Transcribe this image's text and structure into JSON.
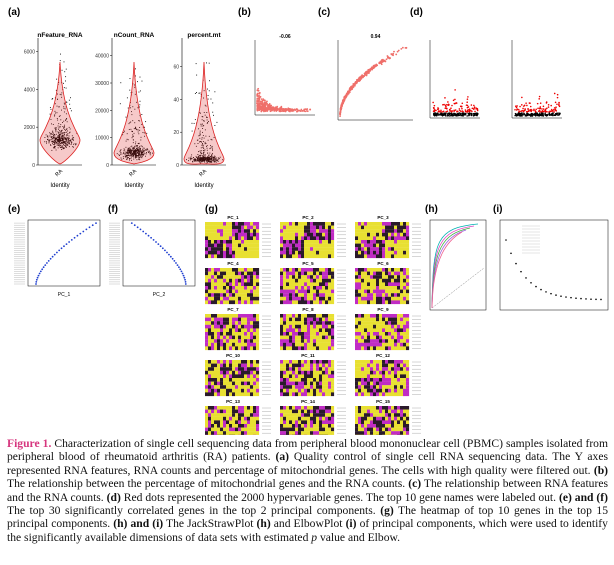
{
  "panel_labels": [
    "(a)",
    "(b)",
    "(c)",
    "(d)",
    "(e)",
    "(f)",
    "(g)",
    "(h)",
    "(i)"
  ],
  "violins": [
    {
      "title": "nFeature_RNA",
      "category": "RA",
      "xlabel": "Identity",
      "ylim": [
        0,
        6500
      ],
      "yticks": [
        0,
        2000,
        4000,
        6000
      ]
    },
    {
      "title": "nCount_RNA",
      "category": "RA",
      "xlabel": "Identity",
      "ylim": [
        0,
        45000
      ],
      "yticks": [
        0,
        10000,
        20000,
        30000,
        40000
      ]
    },
    {
      "title": "percent.mt",
      "category": "RA",
      "xlabel": "Identity",
      "ylim": [
        0,
        75
      ],
      "yticks": [
        0,
        20,
        40,
        60
      ]
    }
  ],
  "correlations": [
    "-0.06",
    "0.94"
  ],
  "pc_axes": [
    "PC_1",
    "PC_2"
  ],
  "heatmap_titles": [
    "PC_1",
    "PC_2",
    "PC_3",
    "PC_4",
    "PC_5",
    "PC_6",
    "PC_7",
    "PC_8",
    "PC_9",
    "PC_10",
    "PC_11",
    "PC_12",
    "PC_13",
    "PC_14",
    "PC_15"
  ],
  "caption": [
    {
      "text": "Figure 1.",
      "style": "fig"
    },
    {
      "text": " Characterization of single cell sequencing data from peripheral blood mononuclear cell (PBMC) samples isolated from peripheral blood of rheumatoid arthritis (RA) patients. "
    },
    {
      "text": "(a)",
      "style": "b"
    },
    {
      "text": " Quality control of single cell RNA sequencing data. The Y axes represented RNA features, RNA counts and percentage of mitochondrial genes. The cells with high quality were filtered out. "
    },
    {
      "text": "(b)",
      "style": "b"
    },
    {
      "text": " The relationship between the percentage of mitochondrial genes and the RNA counts. "
    },
    {
      "text": "(c)",
      "style": "b"
    },
    {
      "text": " The relationship between RNA features and the RNA counts. "
    },
    {
      "text": "(d)",
      "style": "b"
    },
    {
      "text": " Red dots represented the 2000 hypervariable genes. The top 10 gene names were labeled out. "
    },
    {
      "text": "(e) and (f)",
      "style": "b"
    },
    {
      "text": " The top 30 significantly correlated genes in the top 2 principal components. "
    },
    {
      "text": "(g)",
      "style": "b"
    },
    {
      "text": " The heatmap of top 10 genes in the top 15 principal components. "
    },
    {
      "text": "(h) and (i)",
      "style": "b"
    },
    {
      "text": " The JackStrawPlot "
    },
    {
      "text": "(h)",
      "style": "b"
    },
    {
      "text": " and ElbowPlot "
    },
    {
      "text": "(i)",
      "style": "b"
    },
    {
      "text": " of principal components, which were used to identify the significantly available dimensions of data sets with estimated "
    },
    {
      "text": "p",
      "style": "i"
    },
    {
      "text": " value and Elbow."
    }
  ]
}
